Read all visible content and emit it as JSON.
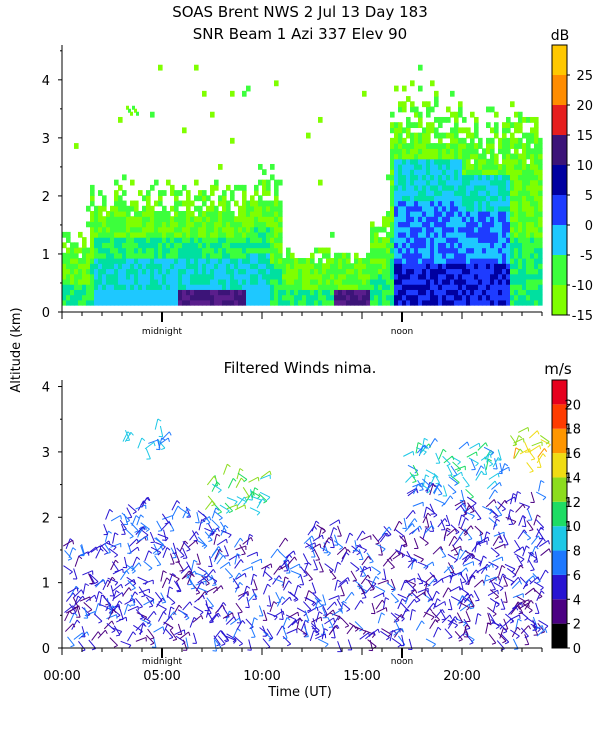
{
  "title_line1": "SOAS Brent NWS    2 Jul 13 Day 183",
  "title_line2": "SNR Beam 1 Azi 337 Elev 90",
  "colors": {
    "snr": [
      "#7fff00",
      "#3cff3c",
      "#00e0a0",
      "#1ec8ff",
      "#1e3cff",
      "#0000a0",
      "#3c1478",
      "#5a1e8c",
      "#e61e1e",
      "#ff8c00",
      "#ffc800"
    ],
    "wind": [
      "#000000",
      "#4b0082",
      "#2814d2",
      "#1e78ff",
      "#1ec8e6",
      "#1edc64",
      "#8cdc1e",
      "#f0dc14",
      "#ff9600",
      "#ff3c00",
      "#e6001e"
    ]
  },
  "chart_data": [
    {
      "type": "heatmap",
      "name": "snr",
      "title": "SNR Beam 1 Azi 337 Elev 90",
      "ylabel": "Altitude (km)",
      "xlim": [
        0,
        24
      ],
      "ylim": [
        0,
        4.6
      ],
      "yticks": [
        0,
        1,
        2,
        3,
        4
      ],
      "x_markers": [
        {
          "x": 5,
          "label": "midnight"
        },
        {
          "x": 17,
          "label": "noon"
        }
      ],
      "colorbar": {
        "unit": "dB",
        "ticks": [
          -15,
          -10,
          -5,
          0,
          5,
          10,
          15,
          20,
          25
        ],
        "range": [
          -15,
          30
        ]
      },
      "bands": [
        {
          "x0": 0,
          "x1": 1.5,
          "top": 1.2
        },
        {
          "x0": 1.5,
          "x1": 9.5,
          "top": 2.0
        },
        {
          "x0": 9.5,
          "x1": 11,
          "top": 2.2
        },
        {
          "x0": 11,
          "x1": 15.5,
          "top": 1.0
        },
        {
          "x0": 15.5,
          "x1": 16.5,
          "top": 1.6
        },
        {
          "x0": 16.5,
          "x1": 20,
          "top": 3.5
        },
        {
          "x0": 20,
          "x1": 24,
          "top": 3.2
        }
      ],
      "patches": [
        {
          "x": 3.5,
          "y": 3.45,
          "label_level": -10
        },
        {
          "x": 7.5,
          "y": 0.25,
          "label_level": 10
        },
        {
          "x": 14.5,
          "y": 0.3,
          "label_level": 10
        }
      ]
    },
    {
      "type": "scatter",
      "name": "filtered_winds",
      "title": "Filtered Winds nima.",
      "xlabel": "Time (UT)",
      "ylabel": "Altitude (km)",
      "xlim": [
        0,
        24
      ],
      "ylim": [
        0,
        4.1
      ],
      "xticks": [
        0,
        5,
        10,
        15,
        20
      ],
      "xtick_labels": [
        "00:00",
        "05:00",
        "10:00",
        "15:00",
        "20:00"
      ],
      "yticks": [
        0,
        1,
        2,
        3,
        4
      ],
      "x_markers": [
        {
          "x": 5,
          "label": "midnight"
        },
        {
          "x": 17,
          "label": "noon"
        }
      ],
      "colorbar": {
        "unit": "m/s",
        "ticks": [
          0,
          2,
          4,
          6,
          8,
          10,
          12,
          14,
          16,
          18,
          20
        ],
        "range": [
          0,
          22
        ]
      },
      "wind_regions": [
        {
          "x0": 0,
          "x1": 12,
          "y0": 0.1,
          "y1": 1.6,
          "speed": 4
        },
        {
          "x0": 2,
          "x1": 8,
          "y0": 1.6,
          "y1": 2.2,
          "speed": 5
        },
        {
          "x0": 3,
          "x1": 5,
          "y0": 3.0,
          "y1": 3.4,
          "speed": 7
        },
        {
          "x0": 7,
          "x1": 10,
          "y0": 2.1,
          "y1": 2.7,
          "speed": 10
        },
        {
          "x0": 12,
          "x1": 17,
          "y0": 0.1,
          "y1": 1.9,
          "speed": 4
        },
        {
          "x0": 17,
          "x1": 24,
          "y0": 0.1,
          "y1": 2.4,
          "speed": 4
        },
        {
          "x0": 17,
          "x1": 22,
          "y0": 2.4,
          "y1": 3.1,
          "speed": 8
        },
        {
          "x0": 22,
          "x1": 24,
          "y0": 2.8,
          "y1": 3.3,
          "speed": 14
        }
      ]
    }
  ]
}
